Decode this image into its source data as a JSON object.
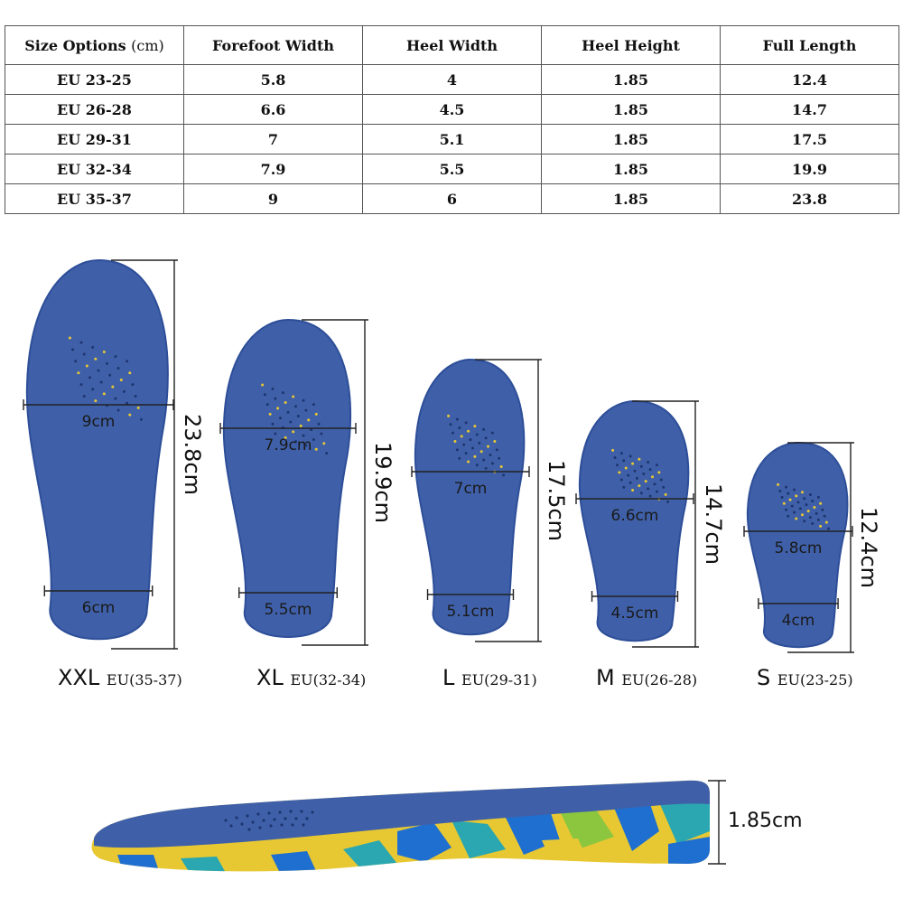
{
  "table": {
    "headers": {
      "size": "Size Options",
      "size_unit": "(cm)",
      "forefoot": "Forefoot Width",
      "heel_width": "Heel Width",
      "heel_height": "Heel Height",
      "full_length": "Full Length"
    },
    "rows": [
      {
        "size": "EU 23-25",
        "forefoot": "5.8",
        "heel_width": "4",
        "heel_height": "1.85",
        "full_length": "12.4"
      },
      {
        "size": "EU 26-28",
        "forefoot": "6.6",
        "heel_width": "4.5",
        "heel_height": "1.85",
        "full_length": "14.7"
      },
      {
        "size": "EU 29-31",
        "forefoot": "7",
        "heel_width": "5.1",
        "heel_height": "1.85",
        "full_length": "17.5"
      },
      {
        "size": "EU 32-34",
        "forefoot": "7.9",
        "heel_width": "5.5",
        "heel_height": "1.85",
        "full_length": "19.9"
      },
      {
        "size": "EU 35-37",
        "forefoot": "9",
        "heel_width": "6",
        "heel_height": "1.85",
        "full_length": "23.8"
      }
    ]
  },
  "insoles": [
    {
      "size": "XXL",
      "eu": "EU(35-37)",
      "forefoot": "9cm",
      "heel": "6cm",
      "length": "23.8cm"
    },
    {
      "size": "XL",
      "eu": "EU(32-34)",
      "forefoot": "7.9cm",
      "heel": "5.5cm",
      "length": "19.9cm"
    },
    {
      "size": "L",
      "eu": "EU(29-31)",
      "forefoot": "7cm",
      "heel": "5.1cm",
      "length": "17.5cm"
    },
    {
      "size": "M",
      "eu": "EU(26-28)",
      "forefoot": "6.6cm",
      "heel": "4.5cm",
      "length": "14.7cm"
    },
    {
      "size": "S",
      "eu": "EU(23-25)",
      "forefoot": "5.8cm",
      "heel": "4cm",
      "length": "12.4cm"
    }
  ],
  "side_view": {
    "height": "1.85cm"
  },
  "colors": {
    "insole_top": "#3f60a8",
    "insole_edge": "#2d4e98",
    "camo_yellow": "#e8c832",
    "camo_blue": "#1f6fd0",
    "camo_teal": "#2aa7b0",
    "camo_green": "#8cc63f",
    "measure_line": "#222222"
  }
}
